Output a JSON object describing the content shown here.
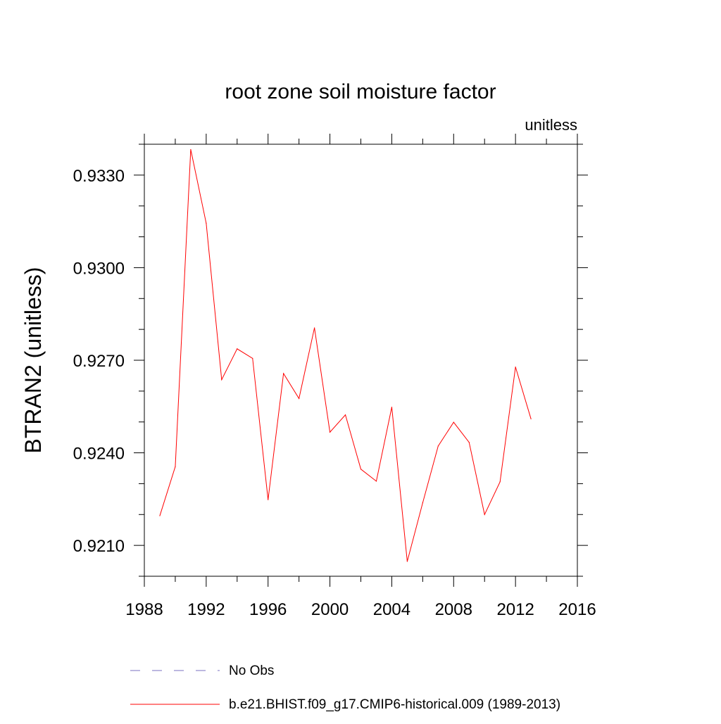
{
  "chart_data": {
    "type": "line",
    "title": "root zone soil moisture factor",
    "units_label": "unitless",
    "xlabel": "",
    "ylabel": "BTRAN2  (unitless)",
    "xlim": [
      1988,
      2016
    ],
    "ylim": [
      0.92,
      0.934
    ],
    "x_ticks": [
      1988,
      1992,
      1996,
      2000,
      2004,
      2008,
      2012,
      2016
    ],
    "x_tick_labels": [
      "1988",
      "1992",
      "1996",
      "2000",
      "2004",
      "2008",
      "2012",
      "2016"
    ],
    "y_ticks": [
      0.921,
      0.924,
      0.927,
      0.93,
      0.933
    ],
    "y_tick_labels": [
      "0.9210",
      "0.9240",
      "0.9270",
      "0.9300",
      "0.9330"
    ],
    "y_minor_step": 0.001,
    "x_minor_step": 2,
    "grid": false,
    "series": [
      {
        "name": "b.e21.BHIST.f09_g17.CMIP6-historical.009 (1989-2013)",
        "color": "#ff0000",
        "style": "solid",
        "x": [
          1989,
          1990,
          1991,
          1992,
          1993,
          1994,
          1995,
          1996,
          1997,
          1998,
          1999,
          2000,
          2001,
          2002,
          2003,
          2004,
          2005,
          2006,
          2007,
          2008,
          2009,
          2010,
          2011,
          2012,
          2013
        ],
        "values": [
          0.92196,
          0.92355,
          0.93383,
          0.93144,
          0.92637,
          0.92737,
          0.92706,
          0.92248,
          0.92657,
          0.92576,
          0.92805,
          0.92467,
          0.92523,
          0.92347,
          0.92308,
          0.92548,
          0.92048,
          0.92238,
          0.92422,
          0.92499,
          0.92434,
          0.922,
          0.92306,
          0.92678,
          0.9251
        ]
      }
    ],
    "legend": {
      "placement": "bottom",
      "entries": [
        {
          "label": "No Obs",
          "color": "#7a70c0",
          "style": "dashed"
        },
        {
          "label": "b.e21.BHIST.f09_g17.CMIP6-historical.009 (1989-2013)",
          "color": "#ff0000",
          "style": "solid"
        }
      ]
    }
  }
}
